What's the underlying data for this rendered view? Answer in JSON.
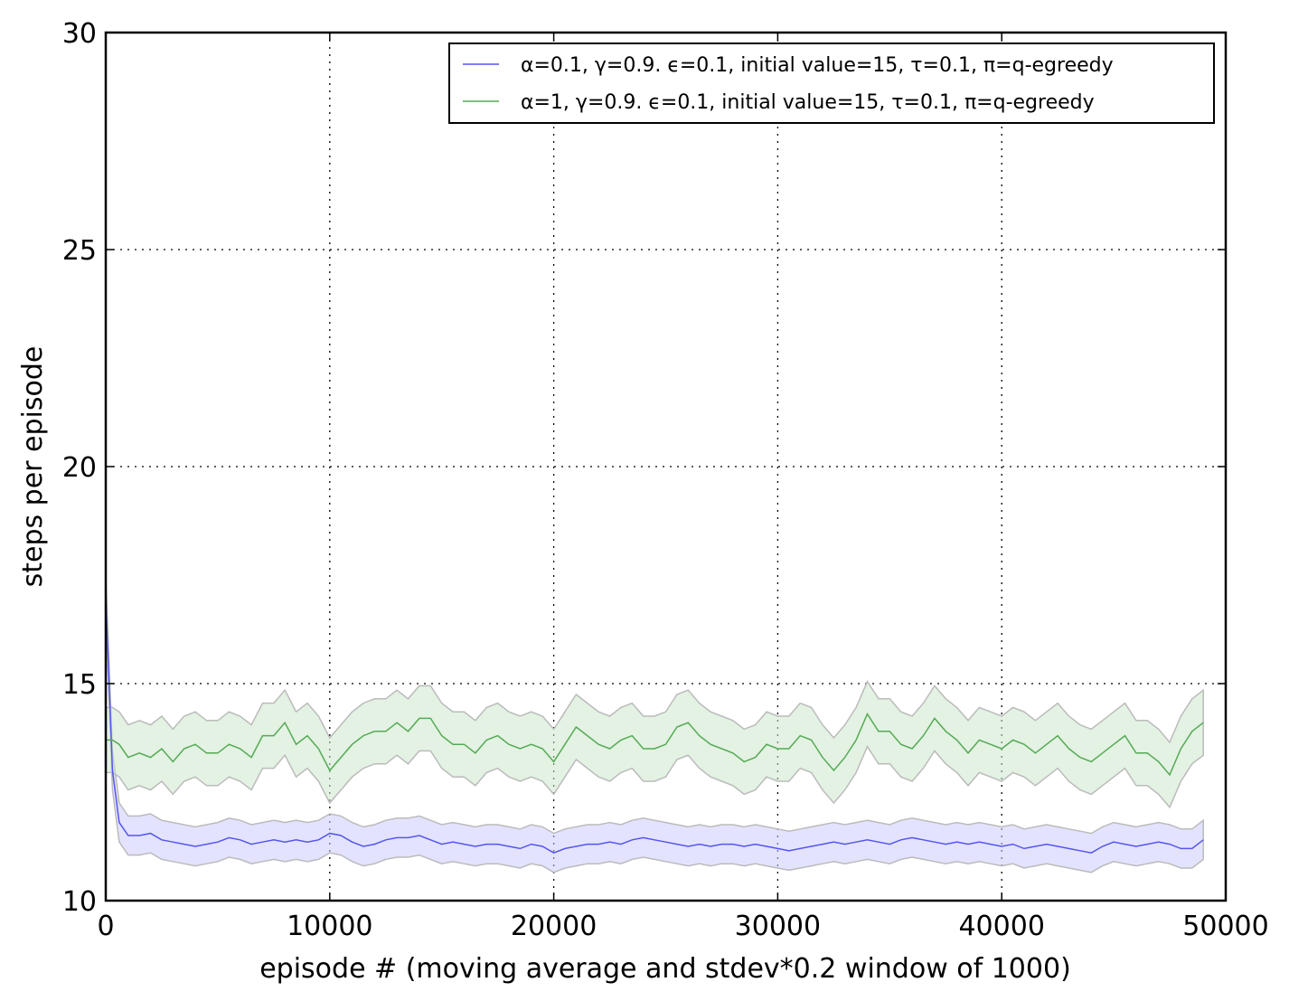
{
  "chart_data": {
    "type": "line",
    "title": "",
    "xlabel": "episode # (moving average and stdev*0.2 window of 1000)",
    "ylabel": "steps per episode",
    "xlim": [
      0,
      50000
    ],
    "ylim": [
      10,
      30
    ],
    "xticks": [
      0,
      10000,
      20000,
      30000,
      40000,
      50000
    ],
    "yticks": [
      10,
      15,
      20,
      25,
      30
    ],
    "xtick_labels": [
      "0",
      "10000",
      "20000",
      "30000",
      "40000",
      "50000"
    ],
    "ytick_labels": [
      "10",
      "15",
      "20",
      "25",
      "30"
    ],
    "grid": true,
    "legend_position": "top-right",
    "series": [
      {
        "name": "α=0.1, γ=0.9. ϵ=0.1, initial value=15, τ=0.1, π=q-egreedy",
        "color": "#5555ee",
        "band_color": "#ccccff",
        "x": [
          0,
          300,
          600,
          1000,
          1500,
          2000,
          2500,
          3000,
          3500,
          4000,
          4500,
          5000,
          5500,
          6000,
          6500,
          7000,
          7500,
          8000,
          8500,
          9000,
          9500,
          10000,
          10500,
          11000,
          11500,
          12000,
          12500,
          13000,
          13500,
          14000,
          14500,
          15000,
          15500,
          16000,
          16500,
          17000,
          17500,
          18000,
          18500,
          19000,
          19500,
          20000,
          20500,
          21000,
          21500,
          22000,
          22500,
          23000,
          23500,
          24000,
          24500,
          25000,
          25500,
          26000,
          26500,
          27000,
          27500,
          28000,
          28500,
          29000,
          29500,
          30000,
          30500,
          31000,
          31500,
          32000,
          32500,
          33000,
          33500,
          34000,
          34500,
          35000,
          35500,
          36000,
          36500,
          37000,
          37500,
          38000,
          38500,
          39000,
          39500,
          40000,
          40500,
          41000,
          41500,
          42000,
          42500,
          43000,
          43500,
          44000,
          44500,
          45000,
          45500,
          46000,
          46500,
          47000,
          47500,
          48000,
          48500,
          49000
        ],
        "y": [
          17.0,
          13.0,
          11.8,
          11.5,
          11.5,
          11.55,
          11.4,
          11.35,
          11.3,
          11.25,
          11.3,
          11.35,
          11.45,
          11.4,
          11.3,
          11.35,
          11.4,
          11.35,
          11.4,
          11.35,
          11.4,
          11.55,
          11.5,
          11.35,
          11.25,
          11.3,
          11.4,
          11.45,
          11.45,
          11.5,
          11.4,
          11.3,
          11.35,
          11.3,
          11.25,
          11.3,
          11.3,
          11.25,
          11.2,
          11.3,
          11.25,
          11.1,
          11.2,
          11.25,
          11.3,
          11.3,
          11.35,
          11.3,
          11.4,
          11.45,
          11.4,
          11.35,
          11.3,
          11.25,
          11.3,
          11.25,
          11.3,
          11.3,
          11.25,
          11.3,
          11.25,
          11.2,
          11.15,
          11.2,
          11.25,
          11.3,
          11.35,
          11.3,
          11.35,
          11.4,
          11.35,
          11.3,
          11.4,
          11.45,
          11.4,
          11.35,
          11.3,
          11.35,
          11.3,
          11.35,
          11.3,
          11.25,
          11.3,
          11.2,
          11.25,
          11.3,
          11.25,
          11.2,
          11.15,
          11.1,
          11.25,
          11.35,
          11.3,
          11.25,
          11.3,
          11.35,
          11.3,
          11.2,
          11.2,
          11.4
        ],
        "band": 0.45
      },
      {
        "name": "α=1, γ=0.9. ϵ=0.1, initial value=15, τ=0.1, π=q-egreedy",
        "color": "#55aa55",
        "band_color": "#cce8cc",
        "x": [
          0,
          300,
          600,
          1000,
          1500,
          2000,
          2500,
          3000,
          3500,
          4000,
          4500,
          5000,
          5500,
          6000,
          6500,
          7000,
          7500,
          8000,
          8500,
          9000,
          9500,
          10000,
          10500,
          11000,
          11500,
          12000,
          12500,
          13000,
          13500,
          14000,
          14500,
          15000,
          15500,
          16000,
          16500,
          17000,
          17500,
          18000,
          18500,
          19000,
          19500,
          20000,
          20500,
          21000,
          21500,
          22000,
          22500,
          23000,
          23500,
          24000,
          24500,
          25000,
          25500,
          26000,
          26500,
          27000,
          27500,
          28000,
          28500,
          29000,
          29500,
          30000,
          30500,
          31000,
          31500,
          32000,
          32500,
          33000,
          33500,
          34000,
          34500,
          35000,
          35500,
          36000,
          36500,
          37000,
          37500,
          38000,
          38500,
          39000,
          39500,
          40000,
          40500,
          41000,
          41500,
          42000,
          42500,
          43000,
          43500,
          44000,
          44500,
          45000,
          45500,
          46000,
          46500,
          47000,
          47500,
          48000,
          48500,
          49000
        ],
        "y": [
          13.7,
          13.7,
          13.6,
          13.3,
          13.4,
          13.3,
          13.5,
          13.2,
          13.5,
          13.6,
          13.4,
          13.4,
          13.6,
          13.5,
          13.3,
          13.8,
          13.8,
          14.1,
          13.6,
          13.8,
          13.5,
          13.0,
          13.3,
          13.6,
          13.8,
          13.9,
          13.9,
          14.1,
          13.9,
          14.2,
          14.2,
          13.8,
          13.6,
          13.6,
          13.4,
          13.7,
          13.8,
          13.6,
          13.5,
          13.6,
          13.5,
          13.2,
          13.6,
          14.0,
          13.8,
          13.6,
          13.5,
          13.7,
          13.8,
          13.5,
          13.5,
          13.6,
          14.0,
          14.1,
          13.8,
          13.6,
          13.5,
          13.4,
          13.2,
          13.3,
          13.6,
          13.5,
          13.5,
          13.8,
          13.7,
          13.3,
          13.0,
          13.3,
          13.7,
          14.3,
          13.9,
          13.9,
          13.6,
          13.5,
          13.8,
          14.2,
          13.9,
          13.7,
          13.4,
          13.7,
          13.6,
          13.5,
          13.7,
          13.6,
          13.4,
          13.6,
          13.8,
          13.5,
          13.3,
          13.2,
          13.4,
          13.6,
          13.8,
          13.4,
          13.4,
          13.2,
          12.9,
          13.5,
          13.9,
          14.1
        ],
        "band": 0.75
      }
    ]
  }
}
